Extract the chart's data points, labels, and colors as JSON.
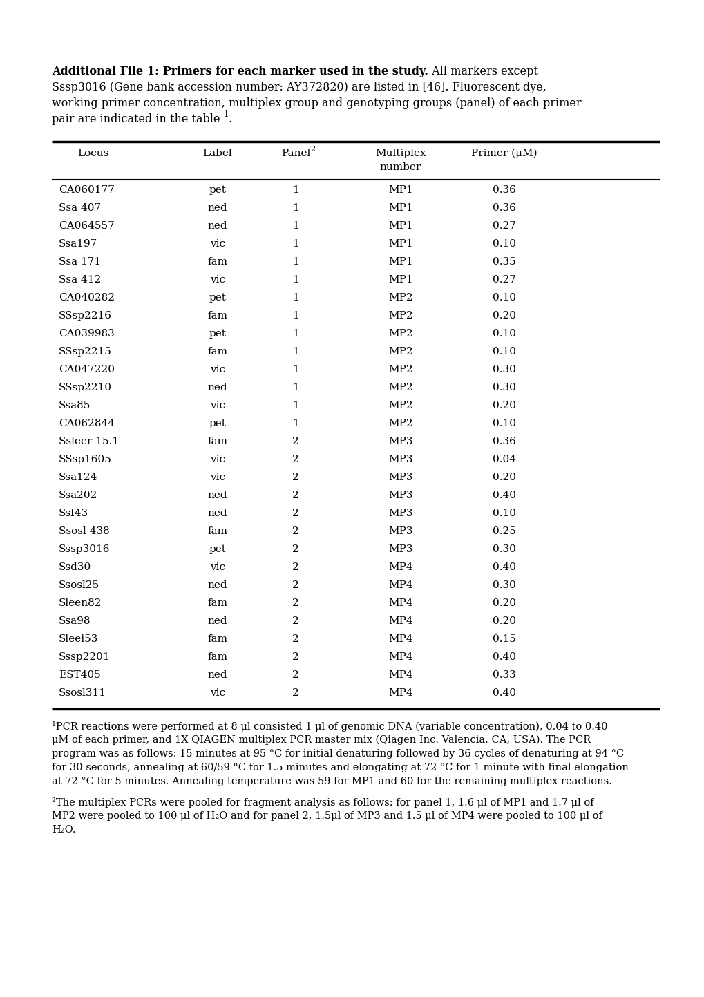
{
  "title_bold": "Additional File 1: Primers for each marker used in the study.",
  "title_rest_line1": " All markers except",
  "title_line2": "Sssp3016 (Gene bank accession number: AY372820) are listed in [46]. Fluorescent dye,",
  "title_line3": "working primer concentration, multiplex group and genotyping groups (panel) of each primer",
  "title_line4a": "pair are indicated in the table ",
  "title_superscript": "1",
  "title_line4b": ".",
  "rows": [
    [
      "CA060177",
      "pet",
      "1",
      "MP1",
      "0.36"
    ],
    [
      "Ssa 407",
      "ned",
      "1",
      "MP1",
      "0.36"
    ],
    [
      "CA064557",
      "ned",
      "1",
      "MP1",
      "0.27"
    ],
    [
      "Ssa197",
      "vic",
      "1",
      "MP1",
      "0.10"
    ],
    [
      "Ssa 171",
      "fam",
      "1",
      "MP1",
      "0.35"
    ],
    [
      "Ssa 412",
      "vic",
      "1",
      "MP1",
      "0.27"
    ],
    [
      "CA040282",
      "pet",
      "1",
      "MP2",
      "0.10"
    ],
    [
      "SSsp2216",
      "fam",
      "1",
      "MP2",
      "0.20"
    ],
    [
      "CA039983",
      "pet",
      "1",
      "MP2",
      "0.10"
    ],
    [
      "SSsp2215",
      "fam",
      "1",
      "MP2",
      "0.10"
    ],
    [
      "CA047220",
      "vic",
      "1",
      "MP2",
      "0.30"
    ],
    [
      "SSsp2210",
      "ned",
      "1",
      "MP2",
      "0.30"
    ],
    [
      "Ssa85",
      "vic",
      "1",
      "MP2",
      "0.20"
    ],
    [
      "CA062844",
      "pet",
      "1",
      "MP2",
      "0.10"
    ],
    [
      "Ssleer 15.1",
      "fam",
      "2",
      "MP3",
      "0.36"
    ],
    [
      "SSsp1605",
      "vic",
      "2",
      "MP3",
      "0.04"
    ],
    [
      "Ssa124",
      "vic",
      "2",
      "MP3",
      "0.20"
    ],
    [
      "Ssa202",
      "ned",
      "2",
      "MP3",
      "0.40"
    ],
    [
      "Ssf43",
      "ned",
      "2",
      "MP3",
      "0.10"
    ],
    [
      "Ssosl 438",
      "fam",
      "2",
      "MP3",
      "0.25"
    ],
    [
      "Sssp3016",
      "pet",
      "2",
      "MP3",
      "0.30"
    ],
    [
      "Ssd30",
      "vic",
      "2",
      "MP4",
      "0.40"
    ],
    [
      "Ssosl25",
      "ned",
      "2",
      "MP4",
      "0.30"
    ],
    [
      "Sleen82",
      "fam",
      "2",
      "MP4",
      "0.20"
    ],
    [
      "Ssa98",
      "ned",
      "2",
      "MP4",
      "0.20"
    ],
    [
      "Sleei53",
      "fam",
      "2",
      "MP4",
      "0.15"
    ],
    [
      "Sssp2201",
      "fam",
      "2",
      "MP4",
      "0.40"
    ],
    [
      "EST405",
      "ned",
      "2",
      "MP4",
      "0.33"
    ],
    [
      "Ssosl311",
      "vic",
      "2",
      "MP4",
      "0.40"
    ]
  ],
  "footnote1_lines": [
    "¹PCR reactions were performed at 8 μl consisted 1 μl of genomic DNA (variable concentration), 0.04 to 0.40",
    "μM of each primer, and 1X QIAGEN multiplex PCR master mix (Qiagen Inc. Valencia, CA, USA). The PCR",
    "program was as follows: 15 minutes at 95 °C for initial denaturing followed by 36 cycles of denaturing at 94 °C",
    "for 30 seconds, annealing at 60/59 °C for 1.5 minutes and elongating at 72 °C for 1 minute with final elongation",
    "at 72 °C for 5 minutes. Annealing temperature was 59 for MP1 and 60 for the remaining multiplex reactions."
  ],
  "footnote2_lines": [
    "²The multiplex PCRs were pooled for fragment analysis as follows: for panel 1, 1.6 μl of MP1 and 1.7 μl of",
    "MP2 were pooled to 100 μl of H₂O and for panel 2, 1.5μl of MP3 and 1.5 μl of MP4 were pooled to 100 μl of",
    "H₂O."
  ],
  "background_color": "#ffffff",
  "text_color": "#000000"
}
